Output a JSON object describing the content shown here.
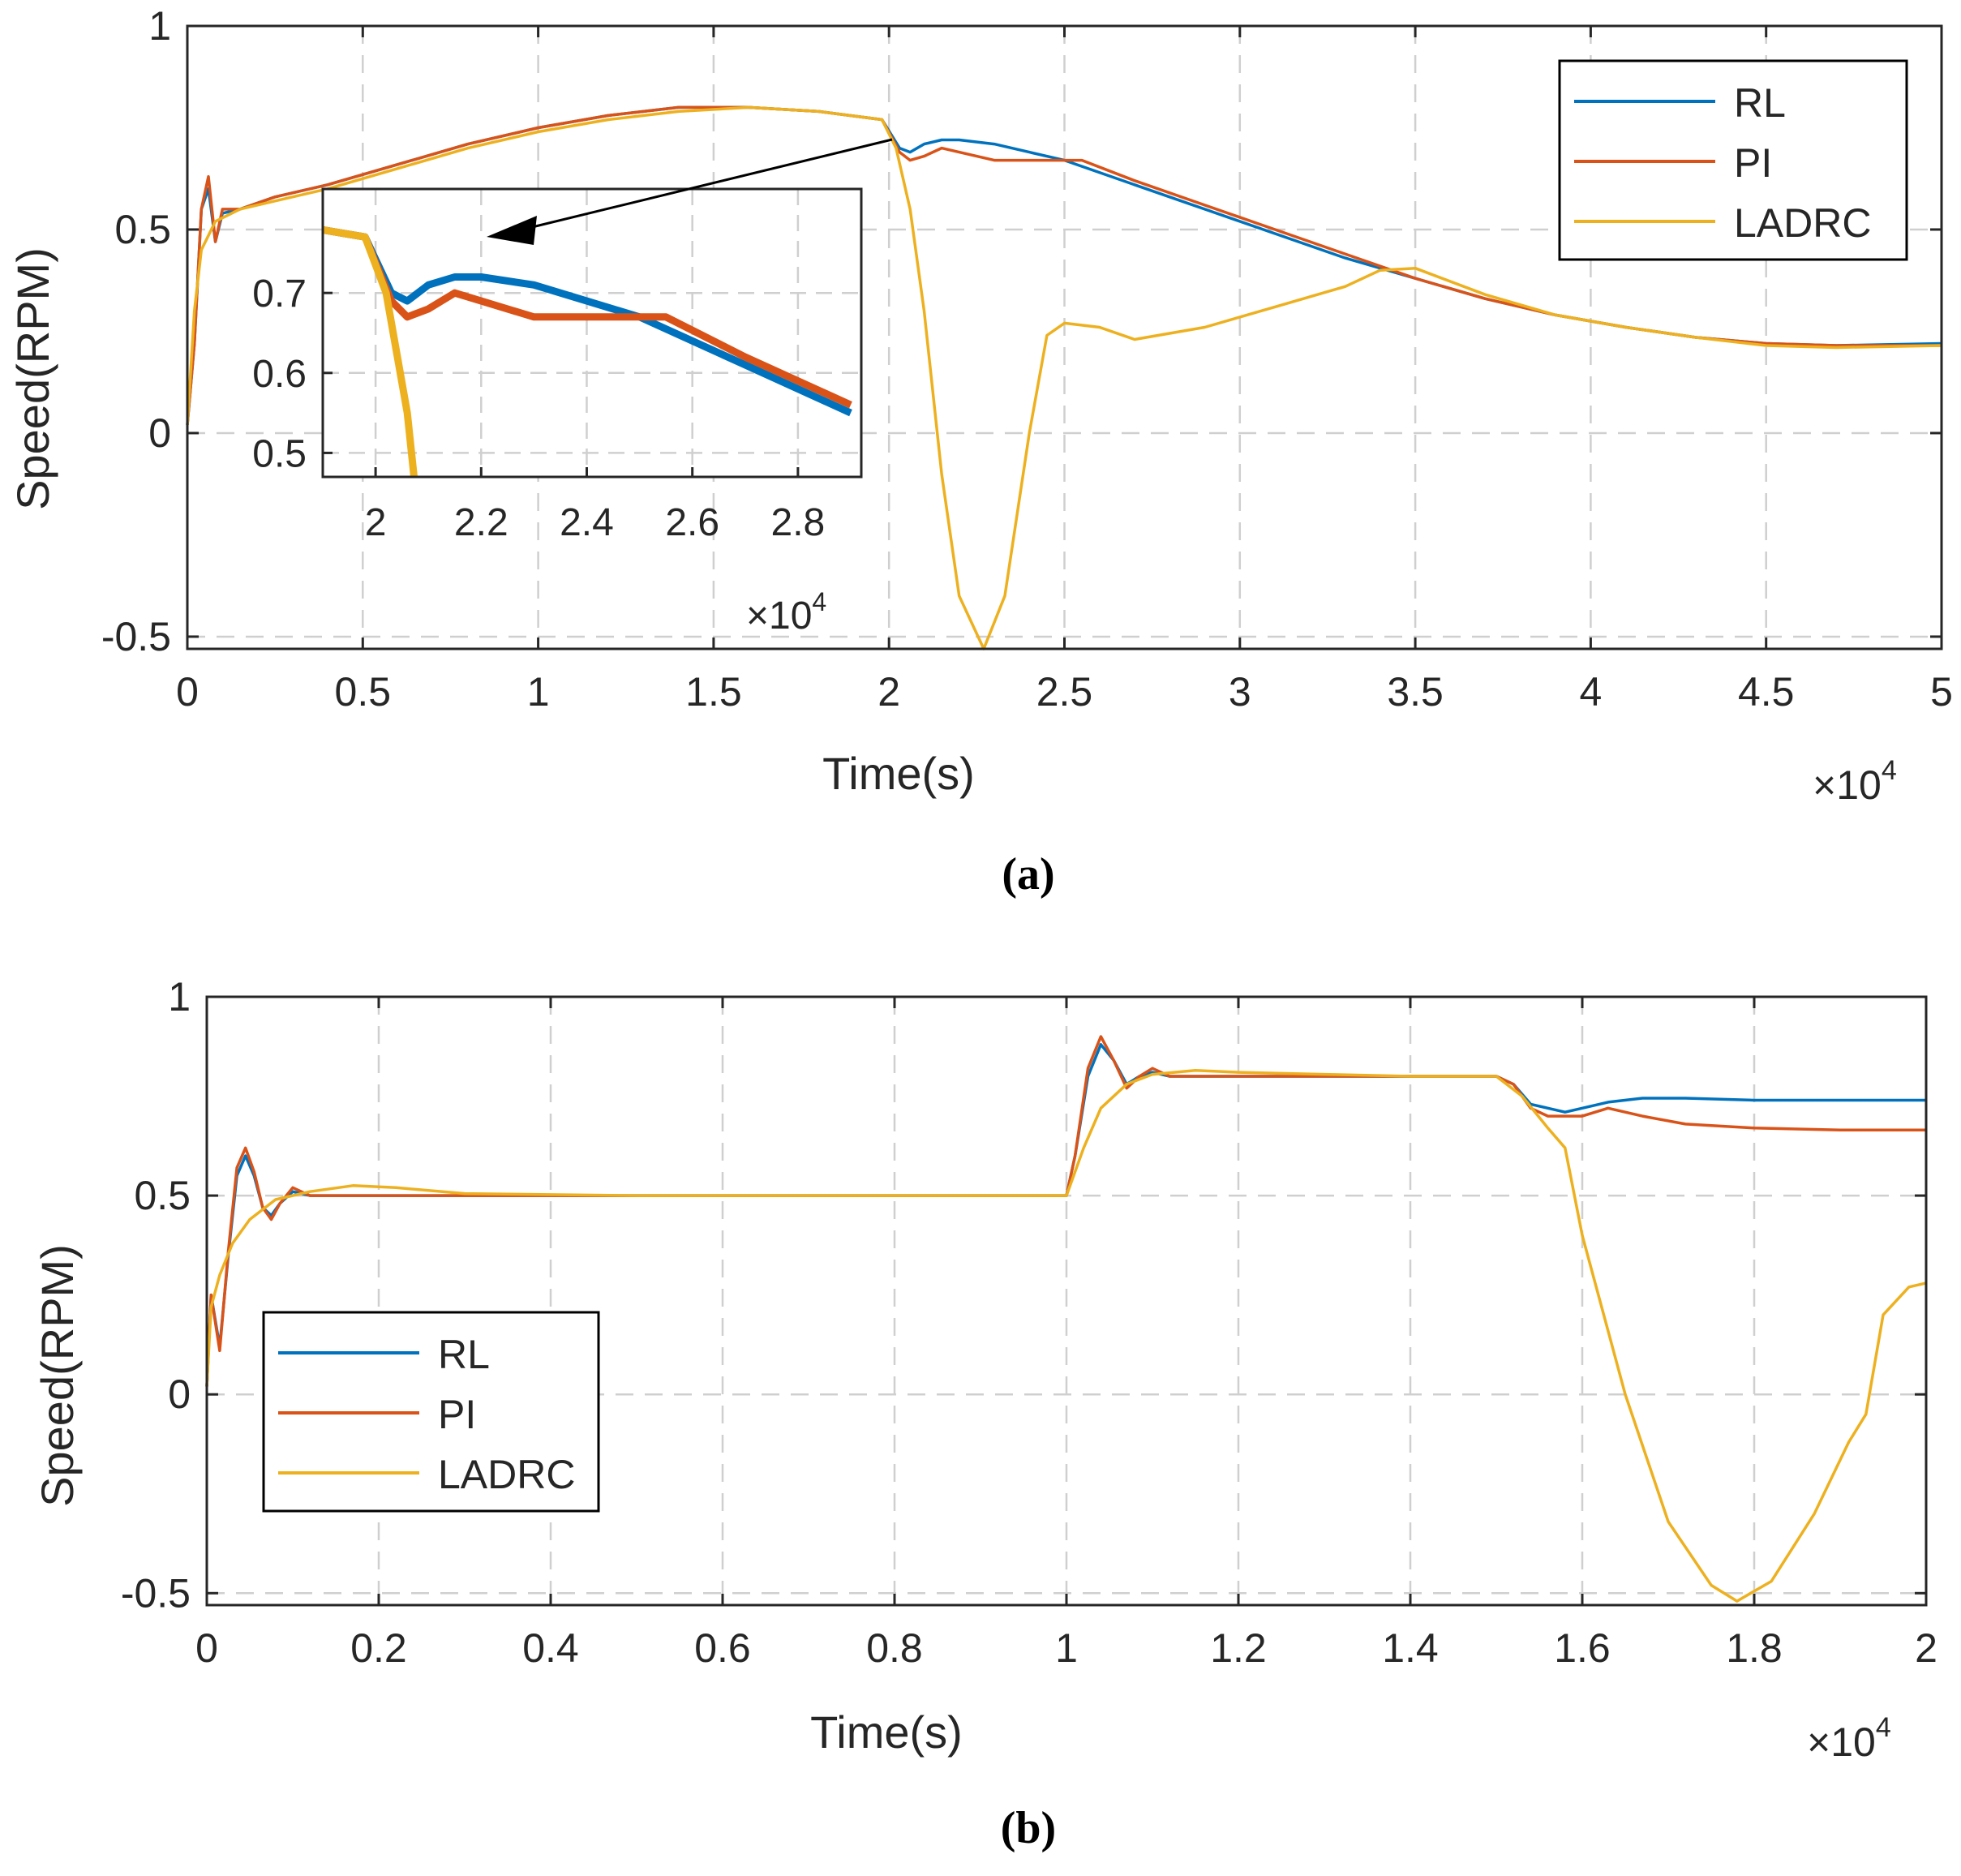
{
  "colors": {
    "RL": "#0072BD",
    "PI": "#D95319",
    "LADRC": "#EDB120",
    "grid": "#cfcfcf",
    "axis": "#262626"
  },
  "chart_data": [
    {
      "type": "line",
      "caption": "(a)",
      "xlabel": "Time(s)",
      "ylabel": "Speed(RPM)",
      "exponent_label": "×10",
      "exponent_power": "4",
      "xlim": [
        0,
        50000
      ],
      "ylim": [
        -0.53,
        1
      ],
      "xticks": [
        0,
        5000,
        10000,
        15000,
        20000,
        25000,
        30000,
        35000,
        40000,
        45000,
        50000
      ],
      "xtick_labels": [
        "0",
        "0.5",
        "1",
        "1.5",
        "2",
        "2.5",
        "3",
        "3.5",
        "4",
        "4.5",
        "5"
      ],
      "yticks": [
        -0.5,
        0,
        0.5,
        1
      ],
      "ytick_labels": [
        "-0.5",
        "0",
        "0.5",
        "1"
      ],
      "grid": true,
      "legend": {
        "position": "top-right",
        "entries": [
          "RL",
          "PI",
          "LADRC"
        ]
      },
      "series": [
        {
          "name": "RL",
          "x": [
            0,
            200,
            400,
            600,
            800,
            1000,
            1500,
            2500,
            4000,
            6000,
            8000,
            10000,
            12000,
            14000,
            16000,
            18000,
            19800,
            20300,
            20600,
            21000,
            21500,
            22000,
            23000,
            24000,
            25000,
            27000,
            29000,
            31000,
            33000,
            35000,
            37000,
            39000,
            41000,
            43000,
            45000,
            47000,
            50000
          ],
          "y": [
            0.02,
            0.22,
            0.55,
            0.6,
            0.47,
            0.54,
            0.55,
            0.58,
            0.61,
            0.66,
            0.71,
            0.75,
            0.78,
            0.8,
            0.8,
            0.79,
            0.77,
            0.7,
            0.69,
            0.71,
            0.72,
            0.72,
            0.71,
            0.69,
            0.67,
            0.61,
            0.55,
            0.49,
            0.43,
            0.38,
            0.33,
            0.29,
            0.26,
            0.235,
            0.22,
            0.215,
            0.22
          ]
        },
        {
          "name": "PI",
          "x": [
            0,
            200,
            400,
            600,
            800,
            1000,
            1500,
            2500,
            4000,
            6000,
            8000,
            10000,
            12000,
            14000,
            16000,
            18000,
            19800,
            20300,
            20600,
            21000,
            21500,
            22000,
            23000,
            24000,
            25000,
            25500,
            27000,
            29000,
            31000,
            33000,
            35000,
            37000,
            39000,
            41000,
            43000,
            45000,
            47000,
            50000
          ],
          "y": [
            0.02,
            0.22,
            0.55,
            0.63,
            0.47,
            0.55,
            0.55,
            0.58,
            0.61,
            0.66,
            0.71,
            0.75,
            0.78,
            0.8,
            0.8,
            0.79,
            0.77,
            0.69,
            0.67,
            0.68,
            0.7,
            0.69,
            0.67,
            0.67,
            0.67,
            0.67,
            0.62,
            0.56,
            0.5,
            0.44,
            0.38,
            0.33,
            0.29,
            0.26,
            0.235,
            0.22,
            0.215,
            0.215
          ]
        },
        {
          "name": "LADRC",
          "x": [
            0,
            200,
            400,
            800,
            1500,
            2500,
            4000,
            6000,
            8000,
            10000,
            12000,
            14000,
            16000,
            18000,
            19800,
            20200,
            20600,
            21000,
            21500,
            22000,
            22700,
            23300,
            24000,
            24500,
            25000,
            26000,
            27000,
            29000,
            31000,
            33000,
            34000,
            35000,
            37000,
            39000,
            41000,
            43000,
            45000,
            47000,
            50000
          ],
          "y": [
            0.02,
            0.3,
            0.45,
            0.52,
            0.55,
            0.57,
            0.6,
            0.65,
            0.7,
            0.74,
            0.77,
            0.79,
            0.8,
            0.79,
            0.77,
            0.7,
            0.55,
            0.3,
            -0.1,
            -0.4,
            -0.53,
            -0.4,
            0.0,
            0.24,
            0.27,
            0.26,
            0.23,
            0.26,
            0.31,
            0.36,
            0.4,
            0.405,
            0.34,
            0.29,
            0.26,
            0.235,
            0.215,
            0.21,
            0.215
          ]
        }
      ],
      "inset": {
        "xlim": [
          19000,
          29200
        ],
        "ylim": [
          0.47,
          0.83
        ],
        "xticks": [
          20000,
          22000,
          24000,
          26000,
          28000
        ],
        "xtick_labels": [
          "2",
          "2.2",
          "2.4",
          "2.6",
          "2.8"
        ],
        "yticks": [
          0.5,
          0.6,
          0.7
        ],
        "ytick_labels": [
          "0.5",
          "0.6",
          "0.7"
        ],
        "exponent_label": "×10",
        "exponent_power": "4"
      }
    },
    {
      "type": "line",
      "caption": "(b)",
      "xlabel": "Time(s)",
      "ylabel": "Speed(RPM)",
      "exponent_label": "×10",
      "exponent_power": "4",
      "xlim": [
        0,
        20000
      ],
      "ylim": [
        -0.53,
        1
      ],
      "xticks": [
        0,
        2000,
        4000,
        6000,
        8000,
        10000,
        12000,
        14000,
        16000,
        18000,
        20000
      ],
      "xtick_labels": [
        "0",
        "0.2",
        "0.4",
        "0.6",
        "0.8",
        "1",
        "1.2",
        "1.4",
        "1.6",
        "1.8",
        "2"
      ],
      "yticks": [
        -0.5,
        0,
        0.5,
        1
      ],
      "ytick_labels": [
        "-0.5",
        "0",
        "0.5",
        "1"
      ],
      "grid": true,
      "legend": {
        "position": "bottom-left",
        "entries": [
          "RL",
          "PI",
          "LADRC"
        ]
      },
      "series": [
        {
          "name": "RL",
          "x": [
            0,
            50,
            150,
            250,
            350,
            450,
            550,
            650,
            750,
            850,
            1000,
            1200,
            1500,
            2000,
            3000,
            5000,
            8000,
            10000,
            10100,
            10250,
            10400,
            10550,
            10700,
            10850,
            11000,
            11200,
            11500,
            12000,
            13000,
            14000,
            15000,
            15200,
            15400,
            15600,
            15800,
            16000,
            16300,
            16700,
            17200,
            18000,
            19000,
            20000
          ],
          "y": [
            0.02,
            0.25,
            0.12,
            0.35,
            0.55,
            0.6,
            0.55,
            0.47,
            0.45,
            0.48,
            0.51,
            0.5,
            0.5,
            0.5,
            0.5,
            0.5,
            0.5,
            0.5,
            0.6,
            0.8,
            0.88,
            0.84,
            0.78,
            0.8,
            0.81,
            0.8,
            0.8,
            0.8,
            0.8,
            0.8,
            0.8,
            0.78,
            0.73,
            0.72,
            0.71,
            0.72,
            0.735,
            0.745,
            0.745,
            0.74,
            0.74,
            0.74
          ]
        },
        {
          "name": "PI",
          "x": [
            0,
            50,
            150,
            250,
            350,
            450,
            550,
            650,
            750,
            850,
            1000,
            1200,
            1500,
            2000,
            3000,
            5000,
            8000,
            10000,
            10100,
            10250,
            10400,
            10550,
            10700,
            10850,
            11000,
            11200,
            11500,
            12000,
            13000,
            14000,
            15000,
            15200,
            15400,
            15600,
            15800,
            16000,
            16300,
            16700,
            17200,
            18000,
            19000,
            20000
          ],
          "y": [
            0.02,
            0.25,
            0.11,
            0.36,
            0.57,
            0.62,
            0.56,
            0.47,
            0.44,
            0.48,
            0.52,
            0.5,
            0.5,
            0.5,
            0.5,
            0.5,
            0.5,
            0.5,
            0.6,
            0.82,
            0.9,
            0.84,
            0.77,
            0.8,
            0.82,
            0.8,
            0.8,
            0.8,
            0.8,
            0.8,
            0.8,
            0.78,
            0.72,
            0.7,
            0.7,
            0.7,
            0.72,
            0.7,
            0.68,
            0.67,
            0.665,
            0.665
          ]
        },
        {
          "name": "LADRC",
          "x": [
            0,
            50,
            150,
            300,
            500,
            800,
            1200,
            1700,
            2200,
            3000,
            5000,
            8000,
            10000,
            10200,
            10400,
            10700,
            11000,
            11500,
            12000,
            13000,
            14000,
            15000,
            15300,
            15600,
            15800,
            16000,
            16500,
            17000,
            17500,
            17800,
            18200,
            18700,
            19100,
            19300,
            19500,
            19800,
            20000
          ],
          "y": [
            0.02,
            0.22,
            0.3,
            0.38,
            0.44,
            0.49,
            0.51,
            0.525,
            0.52,
            0.505,
            0.5,
            0.5,
            0.5,
            0.62,
            0.72,
            0.78,
            0.805,
            0.815,
            0.81,
            0.805,
            0.8,
            0.8,
            0.75,
            0.67,
            0.62,
            0.4,
            0.0,
            -0.32,
            -0.48,
            -0.52,
            -0.47,
            -0.3,
            -0.12,
            -0.05,
            0.2,
            0.27,
            0.28
          ]
        }
      ]
    }
  ]
}
